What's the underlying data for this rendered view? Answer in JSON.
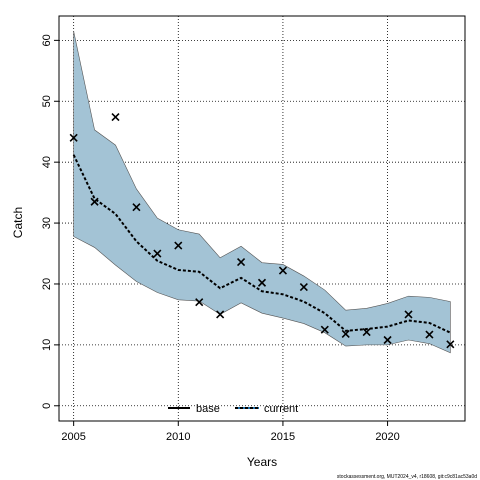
{
  "chart_data": {
    "type": "line",
    "xlabel": "Years",
    "ylabel": "Catch",
    "xlim": [
      2004.3,
      2023.7
    ],
    "ylim": [
      -2.5,
      64
    ],
    "x_ticks": [
      2005,
      2010,
      2015,
      2020
    ],
    "y_ticks": [
      0,
      10,
      20,
      30,
      40,
      50,
      60
    ],
    "grid": true,
    "legend_placement": "bottom-center",
    "legend": [
      {
        "name": "base",
        "style": "solid",
        "color": "#000000"
      },
      {
        "name": "current",
        "style": "dashed",
        "color": "#000000",
        "dash_color": "#1f6fa8"
      }
    ],
    "band_color": "#a3c3d5",
    "band_edge_color": "#555555",
    "x": [
      2005,
      2006,
      2007,
      2008,
      2009,
      2010,
      2011,
      2012,
      2013,
      2014,
      2015,
      2016,
      2017,
      2018,
      2019,
      2020,
      2021,
      2022,
      2023
    ],
    "series": [
      {
        "name": "current",
        "values": [
          41.2,
          34.0,
          31.5,
          27.0,
          23.8,
          22.3,
          22.0,
          19.3,
          21.0,
          18.8,
          18.3,
          17.1,
          15.2,
          12.3,
          12.6,
          13.0,
          14.0,
          13.6,
          12.0
        ]
      }
    ],
    "band": {
      "upper": [
        61.5,
        45.3,
        42.8,
        35.6,
        30.8,
        28.9,
        28.2,
        24.3,
        26.2,
        23.5,
        23.2,
        21.3,
        19.0,
        15.7,
        16.0,
        16.8,
        18.0,
        17.8,
        17.1
      ],
      "lower": [
        27.8,
        26.0,
        23.1,
        20.4,
        18.6,
        17.4,
        17.2,
        15.0,
        16.9,
        15.2,
        14.4,
        13.5,
        12.0,
        9.8,
        10.0,
        10.0,
        10.8,
        10.2,
        8.7
      ]
    },
    "observed": {
      "marker": "x",
      "values": [
        44.0,
        33.5,
        47.4,
        32.6,
        25.0,
        26.3,
        17.0,
        15.0,
        23.6,
        20.2,
        22.2,
        19.5,
        12.5,
        11.8,
        12.1,
        10.8,
        15.0,
        11.7,
        10.1
      ]
    }
  },
  "footer": "stockassessment.org, MUT2024_v4, r18608, git:c9c81ac53a0d"
}
